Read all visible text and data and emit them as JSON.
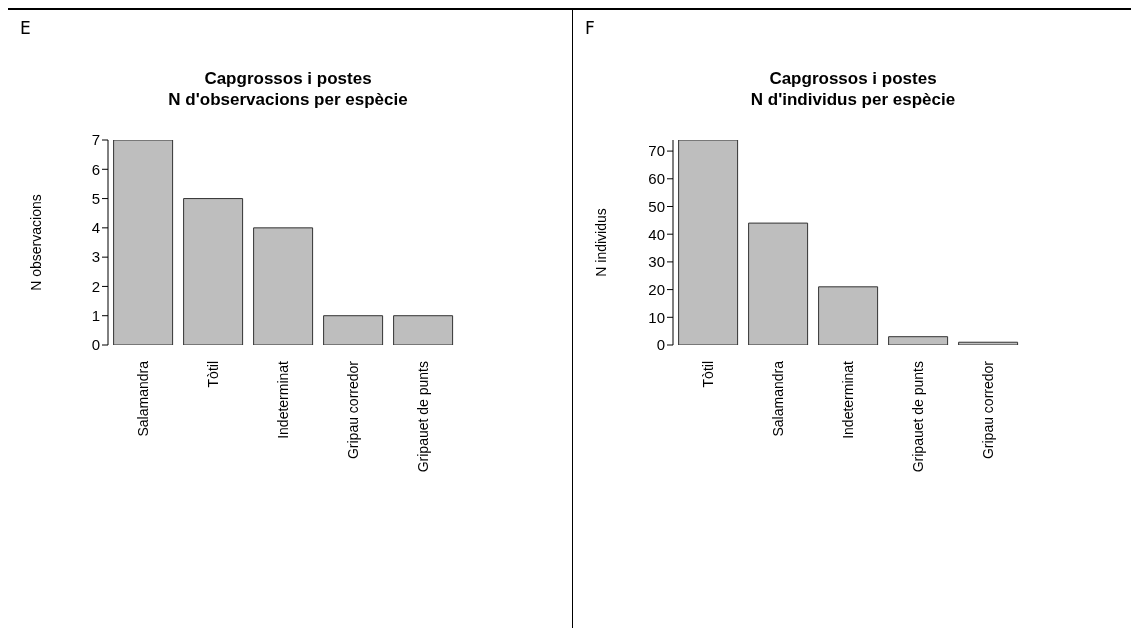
{
  "chart_data": [
    {
      "type": "bar",
      "title": "Capgrossos i postes",
      "subtitle": "N d'observacions per espècie",
      "ylabel": "N observacions",
      "annotations": [
        "E"
      ],
      "categories": [
        "Salamandra",
        "Tòtil",
        "Indeterminat",
        "Gripau corredor",
        "Gripauet de punts"
      ],
      "values": [
        7,
        5,
        4,
        1,
        1
      ],
      "color": "#bebebe",
      "ylim": [
        0,
        7
      ],
      "yticks": [
        0,
        1,
        2,
        3,
        4,
        5,
        6,
        7
      ],
      "grid": false,
      "legend": false
    },
    {
      "type": "bar",
      "title": "Capgrossos i postes",
      "subtitle": "N d'individus per espècie",
      "ylabel": "N individus",
      "annotations": [
        "F"
      ],
      "categories": [
        "Tòtil",
        "Salamandra",
        "Indeterminat",
        "Gripauet de punts",
        "Gripau corredor"
      ],
      "values": [
        74,
        44,
        21,
        3,
        1
      ],
      "color": "#bebebe",
      "ylim": [
        0,
        74
      ],
      "yticks": [
        0,
        10,
        20,
        30,
        40,
        50,
        60,
        70
      ],
      "grid": false,
      "legend": false
    }
  ]
}
